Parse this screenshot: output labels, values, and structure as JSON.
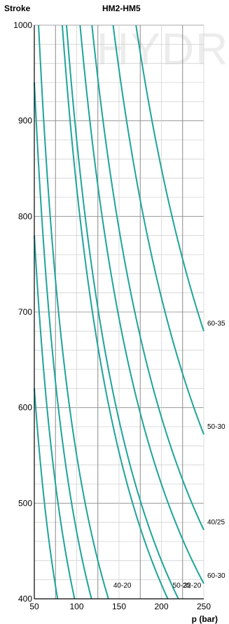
{
  "watermark": "HYDRO",
  "chart_data": {
    "type": "line",
    "title": "HM2-HM5",
    "ylabel": "Stroke",
    "xlabel": "p (bar)",
    "xlim": [
      50,
      250
    ],
    "ylim": [
      400,
      1000
    ],
    "x_ticks": [
      50,
      100,
      150,
      200,
      250
    ],
    "y_ticks": [
      400,
      500,
      600,
      700,
      800,
      900,
      1000
    ],
    "grid": true,
    "colors": {
      "curve": "#1fa39a",
      "grid_major": "#8a8a8a",
      "grid_minor": "#d2d2d2",
      "axis": "#000000"
    },
    "series": [
      {
        "name": "60-35",
        "k": 170000
      },
      {
        "name": "50-30",
        "k": 143000
      },
      {
        "name": "40/25",
        "k": 118000
      },
      {
        "name": "60-30",
        "k": 104000
      },
      {
        "name": "32-20",
        "k": 88000
      },
      {
        "name": "50-25",
        "k": 83000
      },
      {
        "name": "40-20",
        "k": 55000
      },
      {
        "name": "",
        "k": 47000
      },
      {
        "name": "",
        "k": 39000
      },
      {
        "name": "",
        "k": 31000
      }
    ]
  }
}
